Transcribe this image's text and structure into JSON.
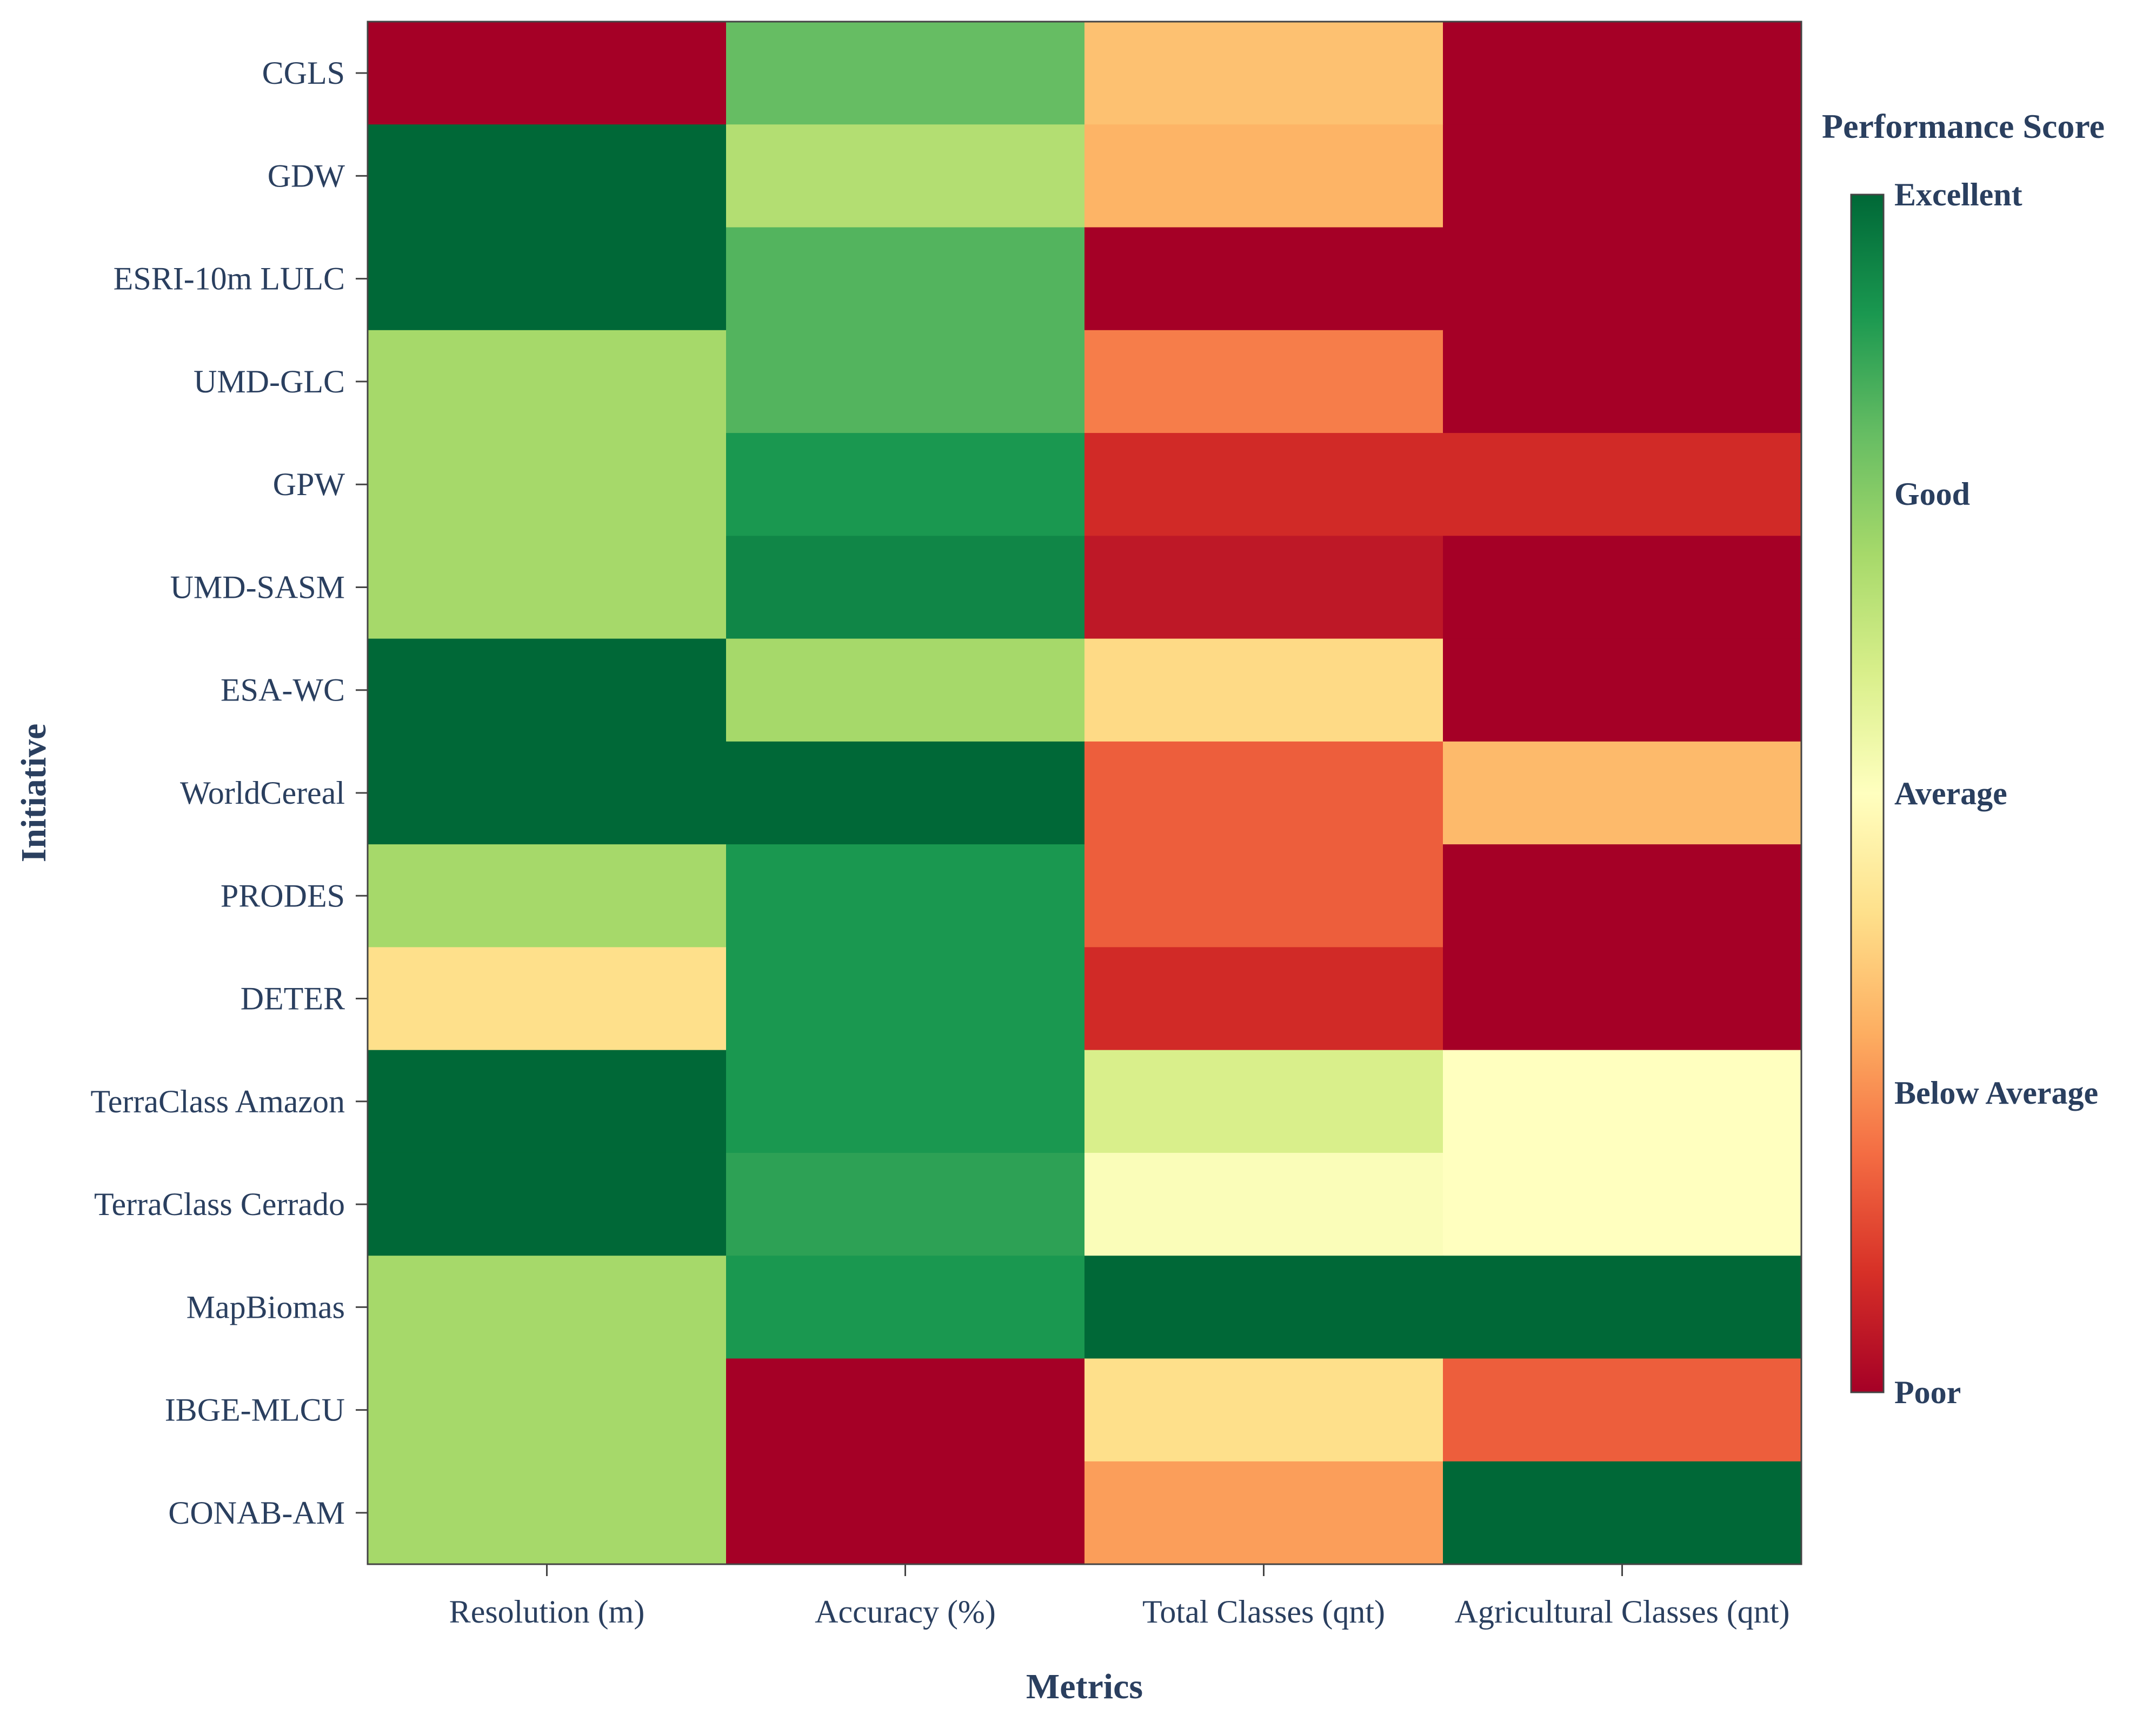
{
  "chart_data": {
    "type": "heatmap",
    "xlabel": "Metrics",
    "ylabel": "Initiative",
    "x_categories": [
      "Resolution (m)",
      "Accuracy (%)",
      "Total Classes (qnt)",
      "Agricultural Classes (qnt)"
    ],
    "y_categories": [
      "CGLS",
      "GDW",
      "ESRI-10m LULC",
      "UMD-GLC",
      "GPW",
      "UMD-SASM",
      "ESA-WC",
      "WorldCereal",
      "PRODES",
      "DETER",
      "TerraClass Amazon",
      "TerraClass Cerrado",
      "MapBiomas",
      "IBGE-MLCU",
      "CONAB-AM"
    ],
    "z": [
      [
        1.0,
        4.2,
        2.35,
        1.0
      ],
      [
        5.0,
        3.7,
        2.25,
        1.0
      ],
      [
        5.0,
        4.3,
        1.0,
        1.0
      ],
      [
        3.8,
        4.3,
        1.9,
        1.0
      ],
      [
        3.8,
        4.6,
        1.35,
        1.35
      ],
      [
        3.8,
        4.75,
        1.2,
        1.0
      ],
      [
        5.0,
        3.8,
        2.55,
        1.0
      ],
      [
        5.0,
        5.0,
        1.7,
        2.3
      ],
      [
        3.8,
        4.6,
        1.7,
        1.0
      ],
      [
        2.6,
        4.6,
        1.35,
        1.0
      ],
      [
        5.0,
        4.6,
        3.4,
        3.0
      ],
      [
        5.0,
        4.5,
        3.05,
        3.0
      ],
      [
        3.8,
        4.6,
        5.0,
        5.0
      ],
      [
        3.8,
        1.0,
        2.6,
        1.7
      ],
      [
        3.8,
        1.0,
        2.1,
        5.0
      ]
    ],
    "zrange": [
      1,
      5
    ],
    "colorscale": "RdYlGn",
    "colorbar": {
      "title": "Performance Score",
      "tickvals": [
        5,
        4,
        3,
        2,
        1
      ],
      "ticktext": [
        "Excellent",
        "Good",
        "Average",
        "Below Average",
        "Poor"
      ]
    }
  }
}
